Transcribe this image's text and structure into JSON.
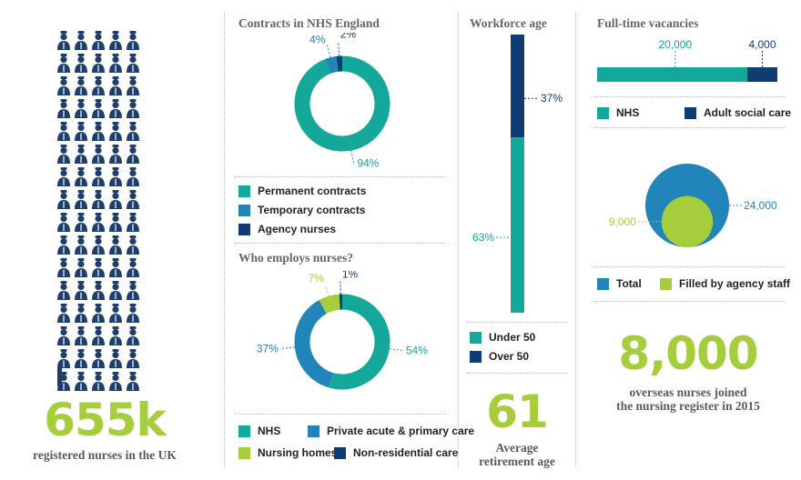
{
  "colors": {
    "teal": "#14a89a",
    "mid_blue": "#2185b9",
    "dark_blue": "#0f3c73",
    "lime": "#a6cd3c",
    "nurse_icon": "#1e3f6e"
  },
  "nurses": {
    "icon": "nurse-figure-icon",
    "big_number": "655k",
    "caption": "registered nurses in the UK"
  },
  "contracts": {
    "title": "Contracts in NHS England",
    "legend": [
      "Permanent contracts",
      "Temporary contracts",
      "Agency nurses"
    ]
  },
  "employers": {
    "title": "Who employs nurses?",
    "legend": [
      "NHS",
      "Private acute & primary care",
      "Nursing homes",
      "Non-residential care"
    ]
  },
  "age": {
    "title": "Workforce age",
    "legend": [
      "Under 50",
      "Over 50"
    ],
    "big_number": "61",
    "caption_line1": "Average",
    "caption_line2": "retirement age"
  },
  "vacancies": {
    "title": "Full-time vacancies",
    "legend": [
      "NHS",
      "Adult social care"
    ],
    "circle_legend": [
      "Total",
      "Filled by agency staff"
    ]
  },
  "overseas": {
    "big_number": "8,000",
    "caption_line1": "overseas nurses joined",
    "caption_line2": "the nursing register in 2015"
  },
  "chart_data": [
    {
      "type": "pie",
      "title": "Contracts in NHS England",
      "categories": [
        "Permanent contracts",
        "Temporary contracts",
        "Agency nurses"
      ],
      "values": [
        94,
        4,
        2
      ],
      "labels": [
        "94%",
        "4%",
        "2%"
      ]
    },
    {
      "type": "pie",
      "title": "Who employs nurses?",
      "categories": [
        "NHS",
        "Private acute & primary care",
        "Nursing homes",
        "Non-residential care"
      ],
      "values": [
        54,
        37,
        7,
        1
      ],
      "labels": [
        "54%",
        "37%",
        "7%",
        "1%"
      ]
    },
    {
      "type": "bar",
      "title": "Workforce age",
      "categories": [
        "Under 50",
        "Over 50"
      ],
      "values": [
        63,
        37
      ],
      "labels": [
        "63%",
        "37%"
      ]
    },
    {
      "type": "bar",
      "title": "Full-time vacancies",
      "categories": [
        "NHS",
        "Adult social care"
      ],
      "values": [
        20000,
        4000
      ],
      "labels": [
        "20,000",
        "4,000"
      ]
    },
    {
      "type": "scatter",
      "categories": [
        "Total",
        "Filled by agency staff"
      ],
      "values": [
        24000,
        9000
      ],
      "labels": [
        "24,000",
        "9,000"
      ]
    }
  ]
}
